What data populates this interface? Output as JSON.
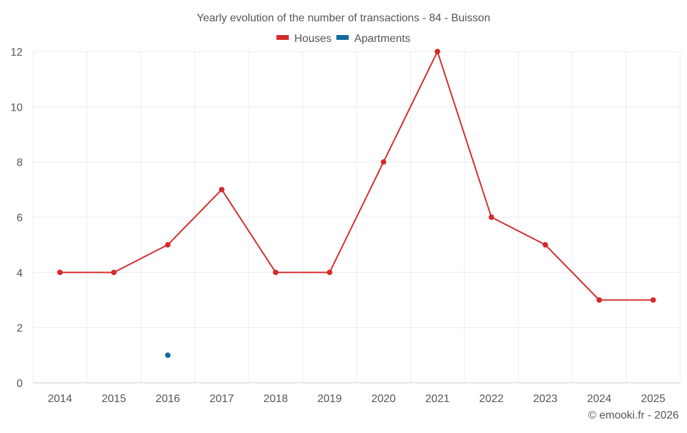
{
  "chart_data": {
    "type": "line",
    "title": "Yearly evolution of the number of transactions - 84 - Buisson",
    "categories": [
      "2014",
      "2015",
      "2016",
      "2017",
      "2018",
      "2019",
      "2020",
      "2021",
      "2022",
      "2023",
      "2024",
      "2025"
    ],
    "series": [
      {
        "name": "Houses",
        "color": "#d42a2a",
        "values": [
          4,
          4,
          5,
          7,
          4,
          4,
          8,
          12,
          6,
          5,
          3,
          3
        ]
      },
      {
        "name": "Apartments",
        "color": "#0f6aa0",
        "values": [
          null,
          null,
          1,
          null,
          null,
          null,
          null,
          null,
          null,
          null,
          null,
          null
        ]
      }
    ],
    "ylim": [
      0,
      12
    ],
    "yticks": [
      0,
      2,
      4,
      6,
      8,
      10,
      12
    ],
    "xlabel": "",
    "ylabel": "",
    "grid": true,
    "legend_position": "top-center"
  },
  "credit": "© emooki.fr - 2026"
}
